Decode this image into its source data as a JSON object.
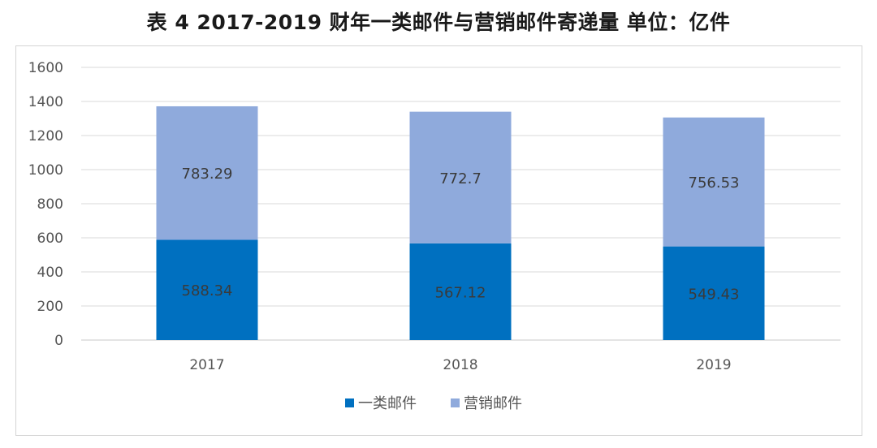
{
  "chart_data": {
    "type": "bar",
    "stacked": true,
    "title": "表 4   2017-2019 财年一类邮件与营销邮件寄递量  单位：亿件",
    "categories": [
      "2017",
      "2018",
      "2019"
    ],
    "series": [
      {
        "name": "一类邮件",
        "values": [
          588.34,
          567.12,
          549.43
        ],
        "labels": [
          "588.34",
          "567.12",
          "549.43"
        ],
        "color": "#0070C0"
      },
      {
        "name": "营销邮件",
        "values": [
          783.29,
          772.7,
          756.53
        ],
        "labels": [
          "783.29",
          "772.7",
          "756.53"
        ],
        "color": "#8FAADC"
      }
    ],
    "yticks": [
      "0",
      "200",
      "400",
      "600",
      "800",
      "1000",
      "1200",
      "1400",
      "1600"
    ],
    "ylim": [
      0,
      1600
    ],
    "grid": true,
    "legend_position": "bottom"
  }
}
